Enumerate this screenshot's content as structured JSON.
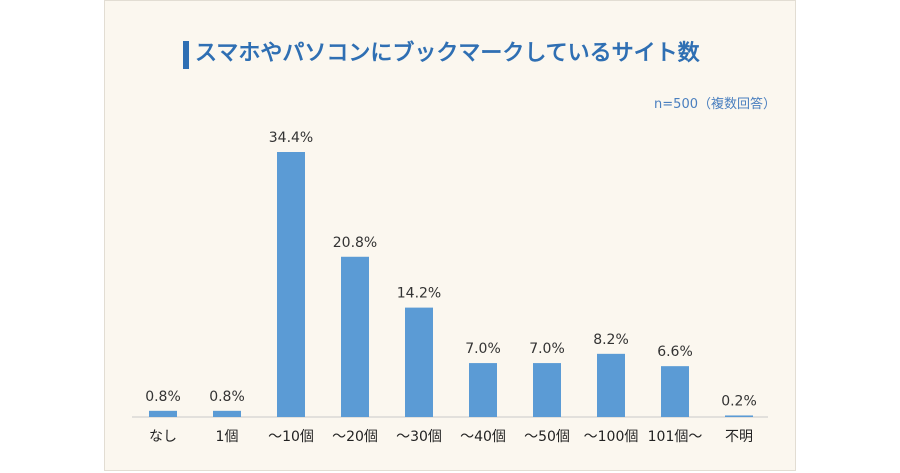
{
  "title": "スマホやパソコンにブックマークしているサイト数",
  "note": "n=500（複数回答）",
  "colors": {
    "bar": "#5b9bd5",
    "title": "#2f6fb3",
    "axis": "#c8c8c8",
    "background": "#fbf7ef"
  },
  "chart_data": {
    "type": "bar",
    "title": "スマホやパソコンにブックマークしているサイト数",
    "categories": [
      "なし",
      "1個",
      "～10個",
      "～20個",
      "～30個",
      "～40個",
      "～50個",
      "～100個",
      "101個～",
      "不明"
    ],
    "values": [
      0.8,
      0.8,
      34.4,
      20.8,
      14.2,
      7.0,
      7.0,
      8.2,
      6.6,
      0.2
    ],
    "value_labels": [
      "0.8%",
      "0.8%",
      "34.4%",
      "20.8%",
      "14.2%",
      "7.0%",
      "7.0%",
      "8.2%",
      "6.6%",
      "0.2%"
    ],
    "ylim": [
      0,
      34.4
    ],
    "grid": false,
    "legend": "none"
  }
}
